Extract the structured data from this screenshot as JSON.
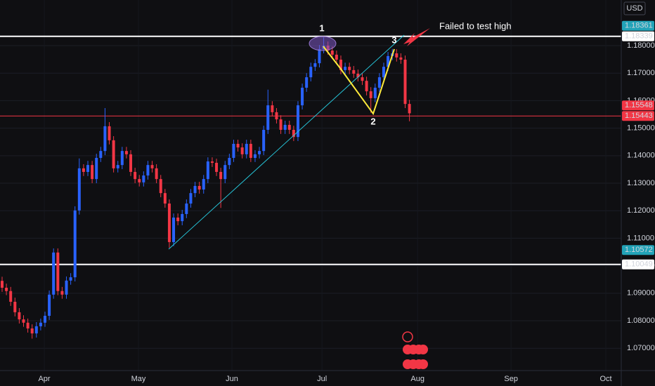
{
  "chart_data": {
    "type": "candlestick",
    "currency": "USD",
    "up_color": "#2962ff",
    "down_color": "#f23645",
    "open": [
      1.0945,
      1.092,
      1.0908,
      1.0869,
      1.0831,
      1.0805,
      1.0793,
      1.0772,
      1.0754,
      1.078,
      1.0793,
      1.0818,
      1.0895,
      1.1048,
      1.0908,
      1.0895,
      1.0946,
      1.0958,
      1.1201,
      1.1354,
      1.1341,
      1.1366,
      1.1315,
      1.1392,
      1.1417,
      1.1507,
      1.1456,
      1.1354,
      1.1366,
      1.1417,
      1.1405,
      1.1341,
      1.1315,
      1.1303,
      1.1328,
      1.1366,
      1.1354,
      1.1315,
      1.1264,
      1.1226,
      1.1086,
      1.1175,
      1.1162,
      1.1188,
      1.1226,
      1.1264,
      1.129,
      1.1277,
      1.1315,
      1.1379,
      1.1374,
      1.1341,
      1.1315,
      1.1366,
      1.1392,
      1.1443,
      1.143,
      1.1405,
      1.1443,
      1.1392,
      1.1405,
      1.1417,
      1.1494,
      1.1583,
      1.1558,
      1.1532,
      1.1494,
      1.1512,
      1.1494,
      1.1468,
      1.1583,
      1.1647,
      1.1685,
      1.1723,
      1.1736,
      1.1787,
      1.18,
      1.1782,
      1.1767,
      1.1749,
      1.1711,
      1.1723,
      1.1711,
      1.1698,
      1.1685,
      1.1672,
      1.1634,
      1.1609,
      1.1647,
      1.1685,
      1.1723,
      1.1762,
      1.1772,
      1.1757,
      1.1749,
      1.1588
    ],
    "high": [
      1.096,
      1.0935,
      1.0923,
      1.0884,
      1.0846,
      1.082,
      1.0808,
      1.0787,
      1.0795,
      1.0808,
      1.0833,
      1.091,
      1.1063,
      1.1063,
      1.0923,
      1.0961,
      1.0973,
      1.1216,
      1.139,
      1.1369,
      1.1381,
      1.1381,
      1.1407,
      1.1432,
      1.1573,
      1.1522,
      1.1471,
      1.1381,
      1.1432,
      1.1432,
      1.142,
      1.1356,
      1.133,
      1.1343,
      1.1381,
      1.1381,
      1.1369,
      1.133,
      1.1279,
      1.1241,
      1.119,
      1.119,
      1.1203,
      1.1241,
      1.1279,
      1.1305,
      1.1305,
      1.133,
      1.1394,
      1.1394,
      1.1389,
      1.1356,
      1.1381,
      1.1407,
      1.1458,
      1.1458,
      1.1445,
      1.1458,
      1.1458,
      1.142,
      1.1432,
      1.1509,
      1.164,
      1.1598,
      1.1573,
      1.1547,
      1.1527,
      1.1527,
      1.1509,
      1.1598,
      1.1662,
      1.17,
      1.1738,
      1.1751,
      1.1802,
      1.183,
      1.1815,
      1.1797,
      1.1782,
      1.1764,
      1.1738,
      1.1738,
      1.1726,
      1.1713,
      1.17,
      1.1687,
      1.1649,
      1.1662,
      1.17,
      1.1738,
      1.1777,
      1.1788,
      1.1787,
      1.1772,
      1.1764,
      1.1603
    ],
    "low": [
      1.0905,
      1.0893,
      1.0854,
      1.0816,
      1.079,
      1.0778,
      1.0757,
      1.0735,
      1.0739,
      1.0765,
      1.0778,
      1.0803,
      1.088,
      1.0893,
      1.088,
      1.088,
      1.0931,
      1.0943,
      1.1186,
      1.1326,
      1.1326,
      1.13,
      1.13,
      1.1377,
      1.1402,
      1.1441,
      1.1339,
      1.1339,
      1.1351,
      1.139,
      1.1326,
      1.13,
      1.1288,
      1.1288,
      1.1313,
      1.1339,
      1.13,
      1.1249,
      1.1211,
      1.1065,
      1.1071,
      1.1147,
      1.1147,
      1.1173,
      1.1211,
      1.1249,
      1.1262,
      1.1262,
      1.13,
      1.1359,
      1.1326,
      1.121,
      1.13,
      1.1351,
      1.1377,
      1.1415,
      1.139,
      1.139,
      1.1377,
      1.1377,
      1.139,
      1.1402,
      1.1479,
      1.1543,
      1.1517,
      1.1479,
      1.1479,
      1.1479,
      1.1453,
      1.1453,
      1.1568,
      1.1632,
      1.167,
      1.1708,
      1.1721,
      1.1772,
      1.1767,
      1.1752,
      1.1734,
      1.1696,
      1.1696,
      1.1696,
      1.1683,
      1.167,
      1.1657,
      1.1619,
      1.1556,
      1.1594,
      1.1632,
      1.167,
      1.1708,
      1.1747,
      1.1742,
      1.1734,
      1.1573,
      1.1525
    ],
    "close": [
      1.092,
      1.0908,
      1.0869,
      1.0831,
      1.0805,
      1.0793,
      1.0772,
      1.0754,
      1.078,
      1.0793,
      1.0818,
      1.0895,
      1.1048,
      1.0908,
      1.0895,
      1.0946,
      1.0958,
      1.1201,
      1.1354,
      1.1341,
      1.1366,
      1.1315,
      1.1392,
      1.1417,
      1.1507,
      1.1456,
      1.1354,
      1.1366,
      1.1417,
      1.1405,
      1.1341,
      1.1315,
      1.1303,
      1.1328,
      1.1366,
      1.1354,
      1.1315,
      1.1264,
      1.1226,
      1.1086,
      1.1175,
      1.1162,
      1.1188,
      1.1226,
      1.1264,
      1.129,
      1.1277,
      1.1315,
      1.1379,
      1.1374,
      1.1341,
      1.1315,
      1.1366,
      1.1392,
      1.1443,
      1.143,
      1.1405,
      1.1443,
      1.1392,
      1.1405,
      1.1417,
      1.1494,
      1.1583,
      1.1558,
      1.1532,
      1.1494,
      1.1512,
      1.1494,
      1.1468,
      1.1583,
      1.1647,
      1.1685,
      1.1723,
      1.1736,
      1.1787,
      1.18,
      1.1782,
      1.1767,
      1.1749,
      1.1711,
      1.1723,
      1.1711,
      1.1698,
      1.1685,
      1.1672,
      1.1634,
      1.1609,
      1.1647,
      1.1685,
      1.1723,
      1.1762,
      1.1772,
      1.1757,
      1.1749,
      1.1588,
      1.1554
    ],
    "xlim": [
      -0.49,
      144.4
    ],
    "xticks": [
      {
        "value": 9.84,
        "label": "Apr"
      },
      {
        "value": 31.8,
        "label": "May"
      },
      {
        "value": 53.6,
        "label": "Jun"
      },
      {
        "value": 74.6,
        "label": "Jul"
      },
      {
        "value": 96.9,
        "label": "Aug"
      },
      {
        "value": 118.7,
        "label": "Sep"
      },
      {
        "value": 140.8,
        "label": "Oct"
      }
    ],
    "ylim": [
      1.0619,
      1.19658
    ],
    "yticks": [
      {
        "value": 1.07,
        "label": "1.07000"
      },
      {
        "value": 1.08,
        "label": "1.08000"
      },
      {
        "value": 1.09,
        "label": "1.09000"
      },
      {
        "value": 1.1,
        "label": "1.10000"
      },
      {
        "value": 1.11,
        "label": "1.11000"
      },
      {
        "value": 1.12,
        "label": "1.12000"
      },
      {
        "value": 1.13,
        "label": "1.13000"
      },
      {
        "value": 1.14,
        "label": "1.14000"
      },
      {
        "value": 1.15,
        "label": "1.15000"
      },
      {
        "value": 1.16,
        "label": "1.16000"
      },
      {
        "value": 1.17,
        "label": "1.17000"
      },
      {
        "value": 1.18,
        "label": "1.18000"
      }
    ],
    "price_lines": [
      {
        "value": 1.18339,
        "color": "#ffffff"
      },
      {
        "value": 1.15443,
        "color": "#f23645"
      },
      {
        "value": 1.10049,
        "color": "#ffffff"
      }
    ],
    "price_labels": [
      {
        "value": 1.18361,
        "label": "1.18361",
        "color": "#22a3b8"
      },
      {
        "value": 1.18339,
        "label": "1.18339",
        "color": "#ffffff"
      },
      {
        "value": 1.15548,
        "label": "1.15548",
        "color": "#f23645"
      },
      {
        "value": 1.15443,
        "label": "1.15443",
        "color": "#f23645"
      },
      {
        "value": 1.10572,
        "label": "1.10572",
        "color": "#22a3b8"
      },
      {
        "value": 1.10049,
        "label": "1.10049",
        "color": "#ffffff"
      }
    ],
    "annotations": [
      "1",
      "2",
      "3",
      "Failed to test high"
    ]
  }
}
